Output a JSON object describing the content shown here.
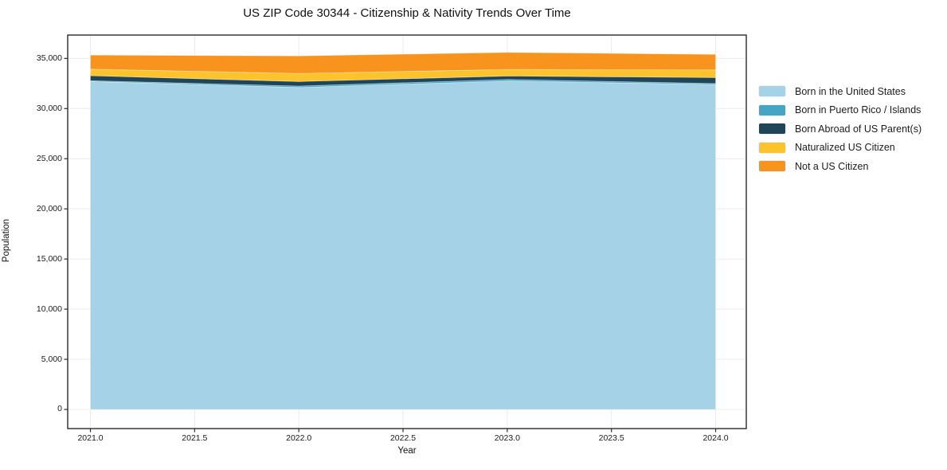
{
  "figure": {
    "background": "#ffffff",
    "spine_color": "#2b2b2b",
    "text_color": "#111111"
  },
  "chart_data": {
    "type": "area",
    "stacked": true,
    "title": "US ZIP Code 30344 - Citizenship & Nativity Trends Over Time",
    "xlabel": "Year",
    "ylabel": "Population",
    "x": [
      2021,
      2022,
      2023,
      2024
    ],
    "series": [
      {
        "name": "Born in the United States",
        "color": "#A6D2E8",
        "values": [
          32700,
          32100,
          32750,
          32400
        ]
      },
      {
        "name": "Born in Puerto Rico / Islands",
        "color": "#46A5C5",
        "values": [
          80,
          150,
          150,
          100
        ]
      },
      {
        "name": "Born Abroad of US Parent(s)",
        "color": "#1F4557",
        "values": [
          500,
          450,
          350,
          600
        ]
      },
      {
        "name": "Naturalized US Citizen",
        "color": "#FCC32D",
        "values": [
          650,
          800,
          650,
          750
        ]
      },
      {
        "name": "Not a US Citizen",
        "color": "#F8941D",
        "values": [
          1400,
          1750,
          1700,
          1550
        ]
      }
    ],
    "totals": [
      35330,
      35250,
      35600,
      35400
    ],
    "xtick_values": [
      2021.0,
      2021.5,
      2022.0,
      2022.5,
      2023.0,
      2023.5,
      2024.0
    ],
    "xtick_labels": [
      "2021.0",
      "2021.5",
      "2022.0",
      "2022.5",
      "2023.0",
      "2023.5",
      "2024.0"
    ],
    "ytick_values": [
      0,
      5000,
      10000,
      15000,
      20000,
      25000,
      30000,
      35000
    ],
    "ytick_labels": [
      "0",
      "5,000",
      "10,000",
      "15,000",
      "20,000",
      "25,000",
      "30,000",
      "35,000"
    ],
    "xlim": [
      2020.891,
      2024.147
    ],
    "ylim": [
      -1907,
      37330
    ],
    "grid": true,
    "grid_color": "#ececec",
    "legend_position": "right outside"
  }
}
